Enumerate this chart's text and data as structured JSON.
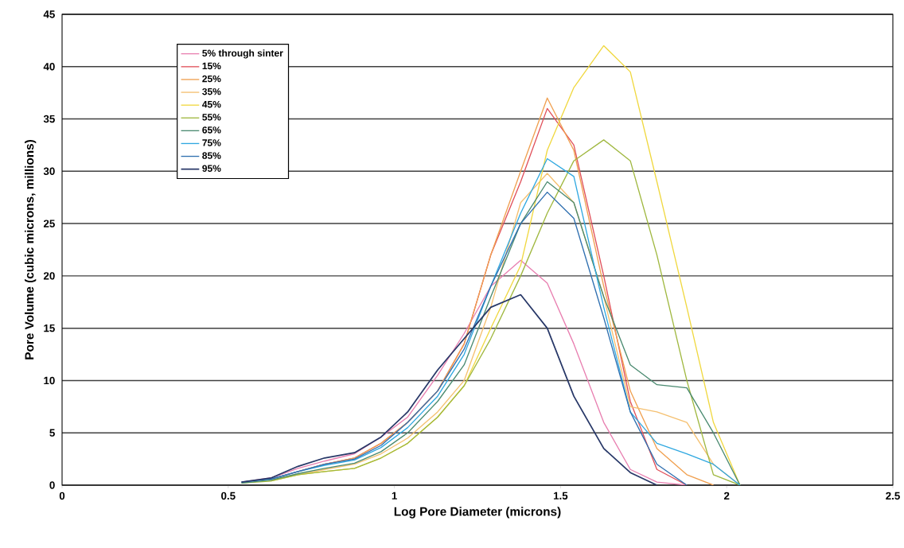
{
  "chart_data": {
    "type": "line",
    "xlabel": "Log Pore Diameter (microns)",
    "ylabel": "Pore Volume (cubic microns, millions)",
    "x": [
      0.54,
      0.63,
      0.71,
      0.79,
      0.88,
      0.96,
      1.04,
      1.13,
      1.21,
      1.29,
      1.38,
      1.46,
      1.54,
      1.63,
      1.71,
      1.79,
      1.88,
      1.96,
      2.04
    ],
    "series": [
      {
        "name": "5% through sinter",
        "color": "#e87fb0",
        "values": [
          0.3,
          0.7,
          1.6,
          2.3,
          3,
          4.6,
          6.5,
          10.5,
          14.5,
          19,
          21.5,
          19.3,
          13.5,
          6,
          1.5,
          0.3,
          0,
          null,
          null
        ]
      },
      {
        "name": "15%",
        "color": "#e0505a",
        "values": [
          null,
          0.6,
          1.3,
          2,
          2.6,
          4,
          6,
          9,
          13.5,
          22,
          29,
          36,
          32.5,
          20,
          8,
          1.5,
          0,
          null,
          null
        ]
      },
      {
        "name": "25%",
        "color": "#f0a050",
        "values": [
          null,
          null,
          1.3,
          2,
          2.6,
          4,
          6,
          9,
          13.5,
          22,
          30,
          37,
          32,
          19,
          9,
          3.5,
          1,
          0,
          null
        ]
      },
      {
        "name": "35%",
        "color": "#f5c070",
        "values": [
          null,
          0.5,
          1,
          1.5,
          2,
          3,
          4.5,
          7,
          10,
          17,
          27,
          29.8,
          27,
          18,
          7.5,
          7,
          6,
          2,
          0
        ]
      },
      {
        "name": "45%",
        "color": "#f0d840",
        "values": [
          null,
          0.4,
          1,
          1.3,
          1.6,
          2.6,
          4,
          6.5,
          9.5,
          15,
          21,
          32,
          38,
          42,
          39.5,
          29,
          17,
          6,
          0
        ]
      },
      {
        "name": "55%",
        "color": "#a0b840",
        "values": [
          0.2,
          0.4,
          1,
          1.3,
          1.6,
          2.6,
          4,
          6.5,
          9.5,
          14,
          20,
          26,
          31,
          33,
          31,
          22,
          10,
          1,
          0
        ]
      },
      {
        "name": "65%",
        "color": "#4a8a70",
        "values": [
          0.2,
          0.5,
          1.1,
          1.6,
          2.1,
          3.2,
          5,
          8,
          11.5,
          18,
          25,
          29,
          27,
          18,
          11.5,
          9.6,
          9.3,
          5,
          0
        ]
      },
      {
        "name": "75%",
        "color": "#30a8e0",
        "values": [
          0.3,
          0.6,
          1.3,
          1.9,
          2.4,
          3.6,
          5.5,
          8.5,
          12.5,
          19,
          26,
          31.2,
          29.5,
          17,
          7,
          4,
          3,
          2,
          0
        ]
      },
      {
        "name": "85%",
        "color": "#3070b0",
        "values": [
          0.3,
          0.6,
          1.3,
          2,
          2.5,
          3.8,
          6,
          9,
          13,
          19,
          25,
          28,
          25.5,
          16,
          7,
          2,
          0,
          null,
          null
        ]
      },
      {
        "name": "95%",
        "color": "#283868",
        "values": [
          0.3,
          0.7,
          1.8,
          2.6,
          3.1,
          4.6,
          7,
          11,
          14,
          17,
          18.2,
          15,
          8.5,
          3.5,
          1.2,
          0,
          null,
          null,
          null
        ]
      }
    ],
    "xlim": [
      0,
      2.5
    ],
    "xticks": [
      0,
      0.5,
      1,
      1.5,
      2,
      2.5
    ],
    "ylim": [
      0,
      45
    ],
    "yticks": [
      0,
      5,
      10,
      15,
      20,
      25,
      30,
      35,
      40,
      45
    ],
    "grid": "y",
    "legend": "top left",
    "marker": "none",
    "line_style": "solid"
  }
}
